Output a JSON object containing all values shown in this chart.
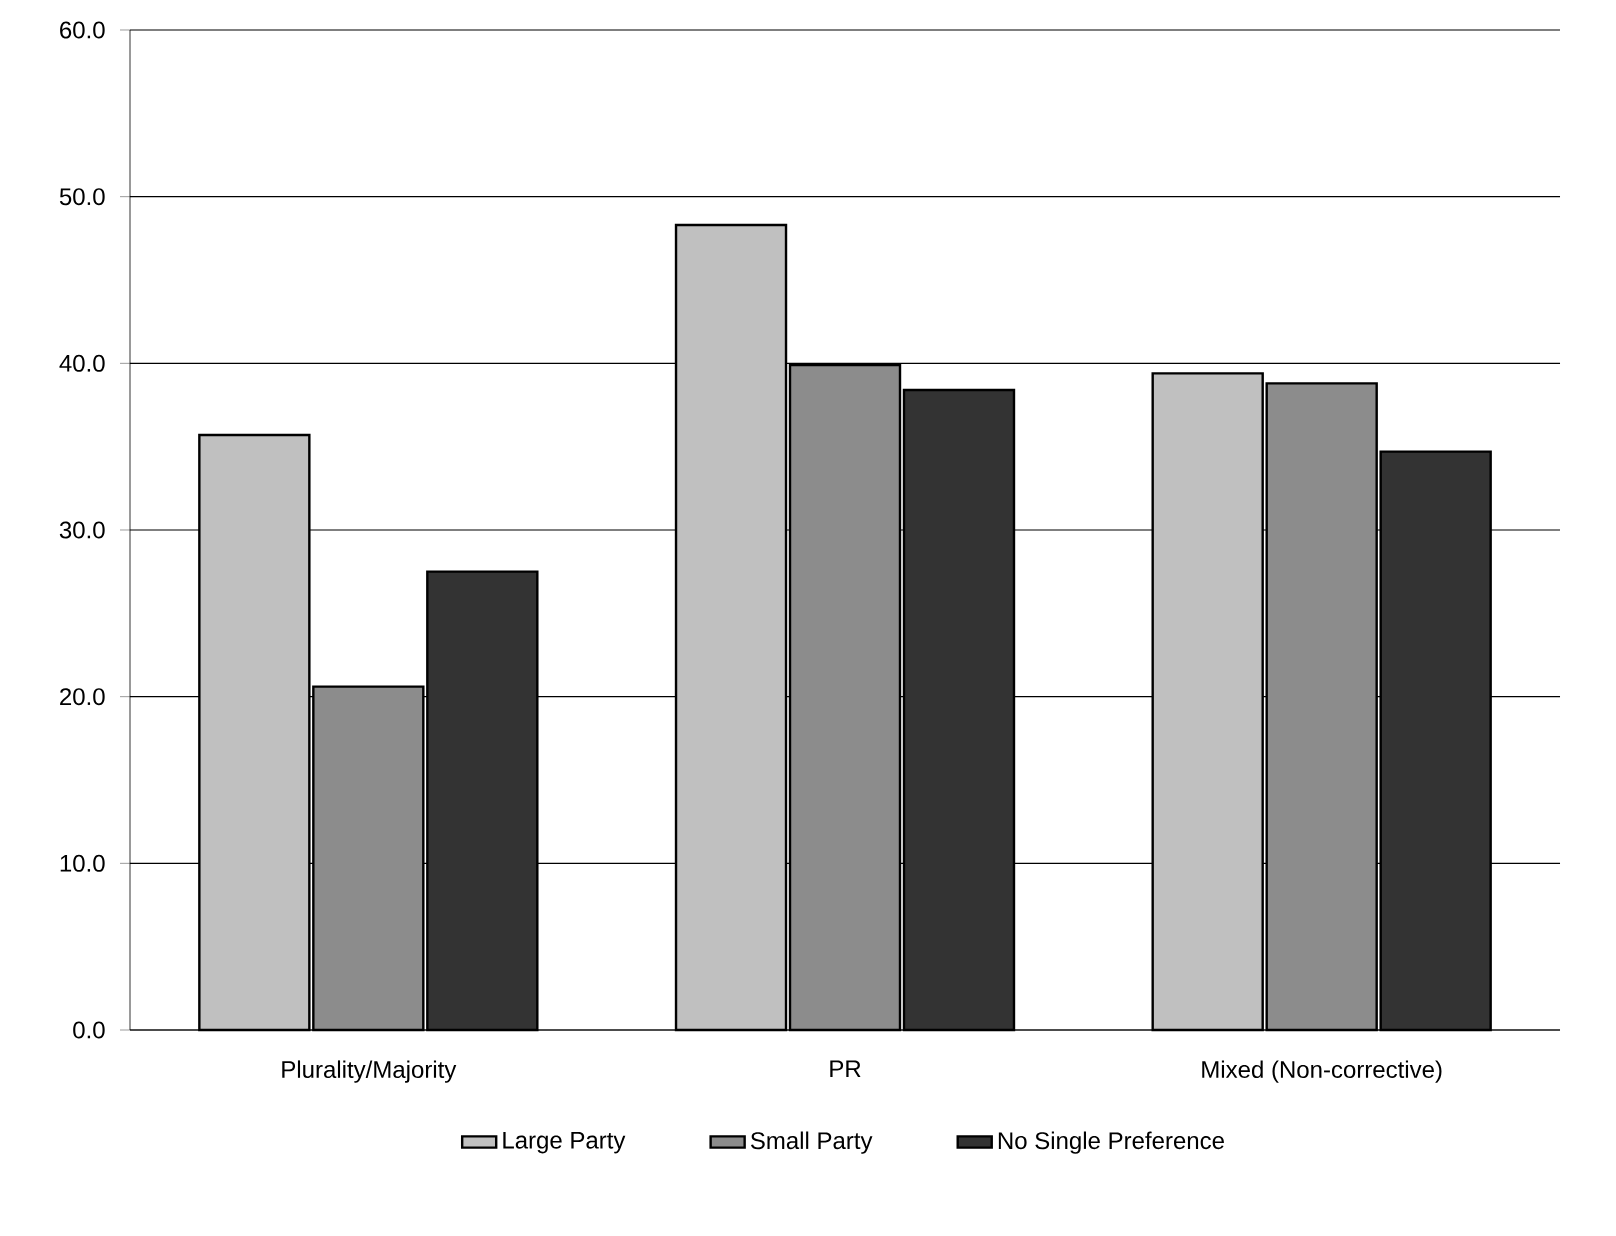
{
  "chart_data": {
    "type": "bar",
    "categories": [
      "Plurality/Majority",
      "PR",
      "Mixed (Non-corrective)"
    ],
    "series": [
      {
        "name": "Large Party",
        "color": "#c0c0c0",
        "values": [
          35.7,
          48.3,
          39.4
        ]
      },
      {
        "name": "Small Party",
        "color": "#8c8c8c",
        "values": [
          20.6,
          39.9,
          38.8
        ]
      },
      {
        "name": "No Single Preference",
        "color": "#333333",
        "values": [
          27.5,
          38.4,
          34.7
        ]
      }
    ],
    "ylim": [
      0,
      60
    ],
    "yticks": [
      {
        "value": 0,
        "label": "0.0"
      },
      {
        "value": 10,
        "label": "10.0"
      },
      {
        "value": 20,
        "label": "20.0"
      },
      {
        "value": 30,
        "label": "30.0"
      },
      {
        "value": 40,
        "label": "40.0"
      },
      {
        "value": 50,
        "label": "50.0"
      },
      {
        "value": 60,
        "label": "60.0"
      }
    ],
    "grid": "y",
    "legend": "bottom"
  }
}
